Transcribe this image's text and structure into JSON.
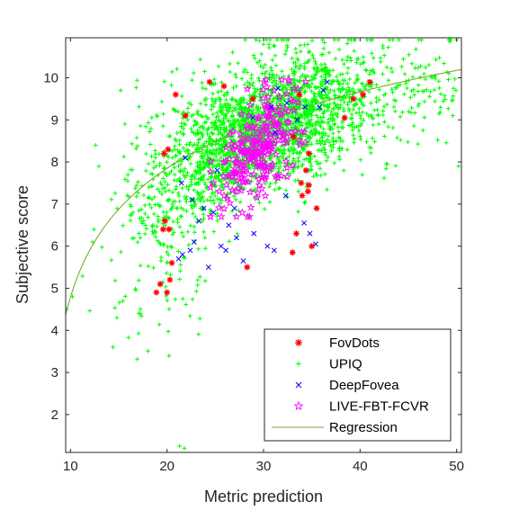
{
  "chart_data": {
    "type": "scatter",
    "xlabel": "Metric prediction",
    "ylabel": "Subjective score",
    "xlim": [
      9.5,
      50.5
    ],
    "ylim": [
      1.1,
      10.95
    ],
    "x_ticks": [
      10,
      20,
      30,
      40,
      50
    ],
    "y_ticks": [
      2,
      3,
      4,
      5,
      6,
      7,
      8,
      9,
      10
    ],
    "grid": false,
    "box": true,
    "legend_position": "bottom-right",
    "series": [
      {
        "name": "FovDots",
        "marker": "asterisk",
        "color": "#ff0000",
        "points": [
          [
            18.9,
            4.9
          ],
          [
            19.3,
            5.1
          ],
          [
            20.0,
            4.9
          ],
          [
            20.3,
            5.2
          ],
          [
            20.5,
            5.6
          ],
          [
            19.6,
            6.4
          ],
          [
            20.2,
            6.4
          ],
          [
            19.8,
            6.6
          ],
          [
            19.7,
            8.2
          ],
          [
            20.1,
            8.3
          ],
          [
            21.9,
            9.1
          ],
          [
            20.9,
            9.6
          ],
          [
            24.4,
            9.9
          ],
          [
            25.9,
            9.8
          ],
          [
            28.9,
            9.5
          ],
          [
            33.1,
            8.6
          ],
          [
            33.9,
            7.5
          ],
          [
            34.4,
            7.8
          ],
          [
            34.6,
            7.3
          ],
          [
            34.7,
            7.45
          ],
          [
            34.0,
            7.2
          ],
          [
            33.4,
            6.3
          ],
          [
            33.0,
            5.85
          ],
          [
            35.0,
            6.0
          ],
          [
            35.5,
            6.9
          ],
          [
            34.7,
            8.2
          ],
          [
            33.7,
            9.6
          ],
          [
            38.4,
            9.05
          ],
          [
            39.3,
            9.5
          ],
          [
            40.3,
            9.6
          ],
          [
            41.0,
            9.9
          ],
          [
            28.3,
            5.5
          ]
        ]
      },
      {
        "name": "UPIQ",
        "marker": "plus",
        "color": "#00ff00",
        "generated": true,
        "seed": 1337,
        "count": 2600,
        "note_points": [
          [
            9.6,
            4.5
          ],
          [
            10.2,
            4.8
          ],
          [
            12.6,
            8.4
          ],
          [
            12.3,
            6.1
          ],
          [
            14.8,
            4.3
          ],
          [
            14.4,
            3.6
          ],
          [
            15.2,
            9.7
          ],
          [
            21.3,
            1.25
          ],
          [
            21.8,
            1.2
          ],
          [
            41.1,
            10.9
          ],
          [
            50.2,
            7.9
          ],
          [
            49.6,
            9.1
          ]
        ]
      },
      {
        "name": "DeepFovea",
        "marker": "x",
        "color": "#0000ff",
        "points": [
          [
            21.2,
            5.7
          ],
          [
            21.6,
            5.8
          ],
          [
            22.4,
            5.9
          ],
          [
            22.8,
            6.1
          ],
          [
            23.3,
            6.6
          ],
          [
            21.5,
            7.5
          ],
          [
            21.9,
            8.1
          ],
          [
            22.6,
            7.1
          ],
          [
            23.8,
            6.9
          ],
          [
            24.3,
            5.5
          ],
          [
            25.6,
            6.0
          ],
          [
            26.1,
            5.9
          ],
          [
            27.2,
            6.2
          ],
          [
            27.9,
            5.65
          ],
          [
            29.0,
            6.3
          ],
          [
            30.4,
            6.0
          ],
          [
            31.1,
            5.9
          ],
          [
            32.3,
            7.2
          ],
          [
            34.2,
            6.55
          ],
          [
            34.8,
            6.3
          ],
          [
            35.4,
            6.05
          ],
          [
            31.2,
            8.7
          ],
          [
            32.4,
            9.4
          ],
          [
            33.5,
            9.0
          ],
          [
            34.3,
            9.3
          ],
          [
            35.8,
            9.3
          ],
          [
            36.6,
            9.9
          ],
          [
            36.2,
            9.7
          ],
          [
            30.8,
            9.3
          ],
          [
            31.5,
            9.75
          ],
          [
            28.9,
            9.05
          ],
          [
            27.0,
            6.9
          ],
          [
            26.4,
            6.5
          ],
          [
            25.2,
            7.8
          ],
          [
            24.8,
            6.8
          ]
        ]
      },
      {
        "name": "LIVE-FBT-FCVR",
        "marker": "pentagram",
        "color": "#ff00ff",
        "generated": true,
        "seed": 4242,
        "count": 260
      },
      {
        "name": "Regression",
        "marker": "line",
        "color": "#77ac30",
        "fit": "y = 3.05 + 1.9 * ln(x - 7.5)"
      }
    ]
  }
}
